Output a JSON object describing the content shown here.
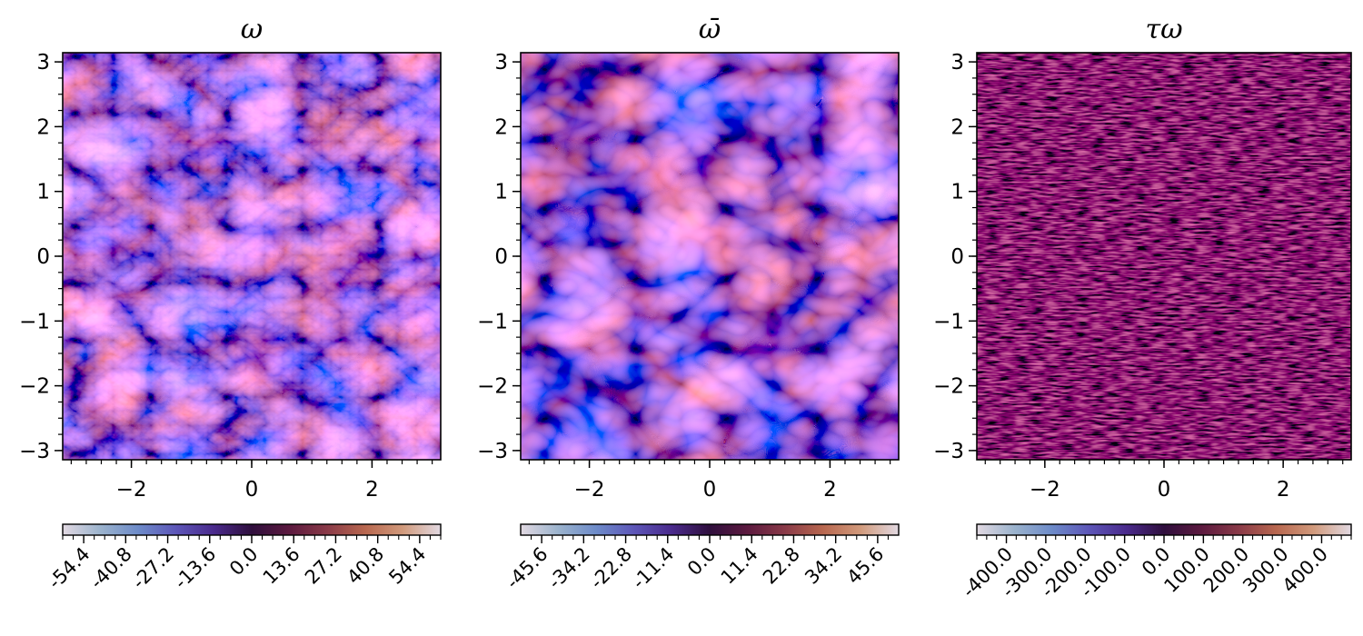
{
  "chart_data": [
    {
      "type": "heatmap",
      "title": "ω",
      "xlim": [
        -3.14159,
        3.14159
      ],
      "ylim": [
        -3.14159,
        3.14159
      ],
      "xticks": [
        -2,
        0,
        2
      ],
      "yticks": [
        3,
        2,
        1,
        0,
        -1,
        -2,
        -3
      ],
      "xtick_labels": [
        "−2",
        "0",
        "2"
      ],
      "ytick_labels": [
        "3",
        "2",
        "1",
        "0",
        "−1",
        "−2",
        "−3"
      ],
      "colorbar": {
        "location": "bottom",
        "colormap": "twilight_shifted",
        "range": [
          -61.2,
          61.2
        ],
        "ticks": [
          -54.4,
          -40.8,
          -27.2,
          -13.6,
          0.0,
          13.6,
          27.2,
          40.8,
          54.4
        ],
        "tick_labels": [
          "-54.4",
          "-40.8",
          "-27.2",
          "-13.6",
          "0.0",
          "13.6",
          "27.2",
          "40.8",
          "54.4"
        ]
      }
    },
    {
      "type": "heatmap",
      "title": "ω̄",
      "xlim": [
        -3.14159,
        3.14159
      ],
      "ylim": [
        -3.14159,
        3.14159
      ],
      "xticks": [
        -2,
        0,
        2
      ],
      "yticks": [
        3,
        2,
        1,
        0,
        -1,
        -2,
        -3
      ],
      "xtick_labels": [
        "−2",
        "0",
        "2"
      ],
      "ytick_labels": [
        "3",
        "2",
        "1",
        "0",
        "−1",
        "−2",
        "−3"
      ],
      "colorbar": {
        "location": "bottom",
        "colormap": "twilight_shifted",
        "range": [
          -51.3,
          51.3
        ],
        "ticks": [
          -45.6,
          -34.2,
          -22.8,
          -11.4,
          0.0,
          11.4,
          22.8,
          34.2,
          45.6
        ],
        "tick_labels": [
          "-45.6",
          "-34.2",
          "-22.8",
          "-11.4",
          "0.0",
          "11.4",
          "22.8",
          "34.2",
          "45.6"
        ]
      }
    },
    {
      "type": "heatmap",
      "title": "τω",
      "xlim": [
        -3.14159,
        3.14159
      ],
      "ylim": [
        -3.14159,
        3.14159
      ],
      "xticks": [
        -2,
        0,
        2
      ],
      "yticks": [
        3,
        2,
        1,
        0,
        -1,
        -2,
        -3
      ],
      "xtick_labels": [
        "−2",
        "0",
        "2"
      ],
      "ytick_labels": [
        "3",
        "2",
        "1",
        "0",
        "−1",
        "−2",
        "−3"
      ],
      "colorbar": {
        "location": "bottom",
        "colormap": "twilight_shifted",
        "range": [
          -475,
          475
        ],
        "ticks": [
          -400.0,
          -300.0,
          -200.0,
          -100.0,
          0.0,
          100.0,
          200.0,
          300.0,
          400.0
        ],
        "tick_labels": [
          "-400.0",
          "-300.0",
          "-200.0",
          "-100.0",
          "0.0",
          "100.0",
          "200.0",
          "300.0",
          "400.0"
        ]
      }
    }
  ],
  "colors": {
    "twilight_shifted": [
      "#e2d9e2",
      "#9bb3cd",
      "#6d8bc9",
      "#5d56b8",
      "#4a2a8c",
      "#2f0f3d",
      "#5c1a3f",
      "#8a3a48",
      "#b8674f",
      "#d19a7c",
      "#e2d9e2"
    ],
    "field_dark": "#2f0f3d",
    "axis": "#000000"
  }
}
